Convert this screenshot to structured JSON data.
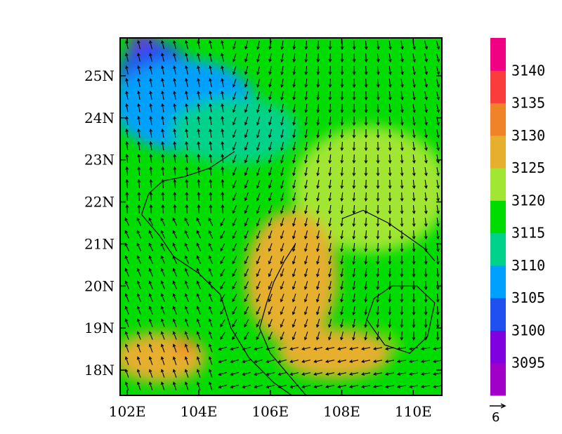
{
  "chart_data": {
    "type": "heatmap",
    "map": {
      "lon_range": [
        101.8,
        110.8
      ],
      "lat_range": [
        17.4,
        25.9
      ],
      "x_ticks": [
        {
          "value": 102,
          "label": "102E"
        },
        {
          "value": 104,
          "label": "104E"
        },
        {
          "value": 106,
          "label": "106E"
        },
        {
          "value": 108,
          "label": "108E"
        },
        {
          "value": 110,
          "label": "110E"
        }
      ],
      "y_ticks": [
        {
          "value": 18,
          "label": "18N"
        },
        {
          "value": 19,
          "label": "19N"
        },
        {
          "value": 20,
          "label": "20N"
        },
        {
          "value": 21,
          "label": "21N"
        },
        {
          "value": 22,
          "label": "22N"
        },
        {
          "value": 23,
          "label": "23N"
        },
        {
          "value": 24,
          "label": "24N"
        },
        {
          "value": 25,
          "label": "25N"
        }
      ]
    },
    "colorbar": {
      "levels": [
        3095,
        3100,
        3105,
        3110,
        3115,
        3120,
        3125,
        3130,
        3135,
        3140
      ],
      "labels": [
        "3095",
        "3100",
        "3105",
        "3110",
        "3115",
        "3120",
        "3125",
        "3130",
        "3135",
        "3140"
      ],
      "colors": [
        "#a000c8",
        "#8000e0",
        "#2050f0",
        "#00a0ff",
        "#00d28c",
        "#00dc00",
        "#a0e632",
        "#e6af2d",
        "#f08228",
        "#fa3c3c",
        "#f00082"
      ]
    },
    "vector_reference": {
      "label": "6"
    },
    "field_regions": [
      {
        "name": "purple-northwest",
        "value": 3095,
        "lon": 102.5,
        "lat": 25.6,
        "r_lon": 0.5,
        "r_lat": 0.4
      },
      {
        "name": "blue-northwest",
        "value": 3102,
        "lon": 102.8,
        "lat": 24.9,
        "r_lon": 1.1,
        "r_lat": 0.9
      },
      {
        "name": "lightblue-north",
        "value": 3107,
        "lon": 103.6,
        "lat": 24.3,
        "r_lon": 2.0,
        "r_lat": 1.1
      },
      {
        "name": "teal-north",
        "value": 3112,
        "lon": 105.0,
        "lat": 23.7,
        "r_lon": 1.8,
        "r_lat": 0.8
      },
      {
        "name": "yellowgreen-east",
        "value": 3123,
        "lon": 108.8,
        "lat": 22.3,
        "r_lon": 2.2,
        "r_lat": 1.5
      },
      {
        "name": "orange-center",
        "value": 3127,
        "lon": 106.6,
        "lat": 20.2,
        "r_lon": 1.3,
        "r_lat": 1.6
      },
      {
        "name": "orange-south",
        "value": 3127,
        "lon": 107.8,
        "lat": 18.4,
        "r_lon": 1.6,
        "r_lat": 0.6
      },
      {
        "name": "orange-southwest",
        "value": 3128,
        "lon": 102.9,
        "lat": 18.3,
        "r_lon": 1.3,
        "r_lat": 0.6
      },
      {
        "name": "red-spot-southwest",
        "value": 3133,
        "lon": 103.6,
        "lat": 18.6,
        "r_lon": 0.3,
        "r_lat": 0.2
      },
      {
        "name": "green-southeast",
        "value": 3118,
        "lon": 110.0,
        "lat": 19.4,
        "r_lon": 0.9,
        "r_lat": 1.0
      }
    ]
  }
}
